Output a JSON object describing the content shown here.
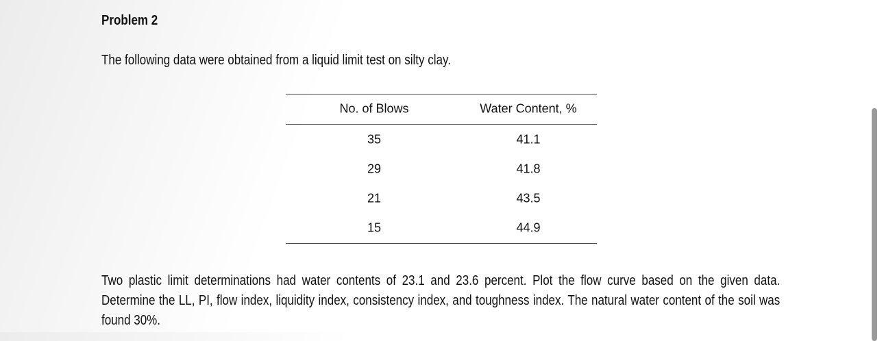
{
  "header": {
    "title": "Problem 2"
  },
  "intro": "The following data were obtained from a liquid limit test on silty clay.",
  "table": {
    "columns": [
      "No. of Blows",
      "Water Content, %"
    ],
    "rows": [
      [
        "35",
        "41.1"
      ],
      [
        "29",
        "41.8"
      ],
      [
        "21",
        "43.5"
      ],
      [
        "15",
        "44.9"
      ]
    ]
  },
  "paragraph": "Two plastic limit determinations had water contents of 23.1 and 23.6 percent. Plot the flow curve based on the given data. Determine the LL, PI, flow index, liquidity index, consistency index, and toughness index. The natural water content of the soil was found 30%."
}
